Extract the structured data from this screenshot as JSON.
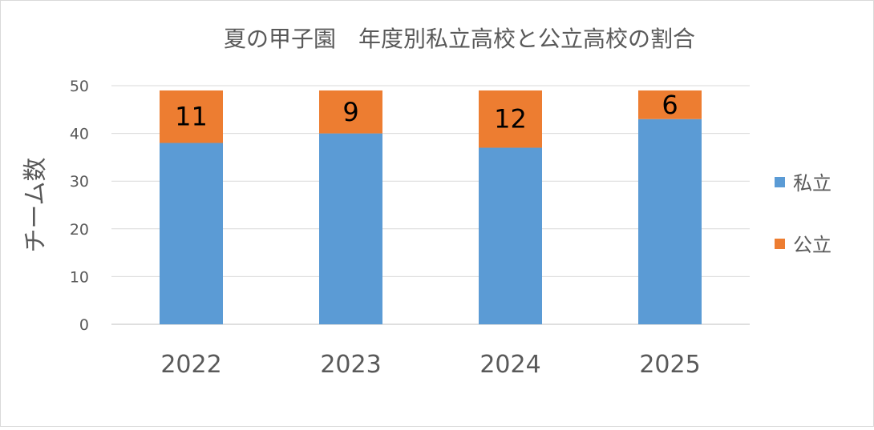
{
  "chart_data": {
    "type": "bar",
    "stacked": true,
    "title": "夏の甲子園　年度別私立高校と公立高校の割合",
    "xlabel": "",
    "ylabel": "チーム数",
    "categories": [
      "2022",
      "2023",
      "2024",
      "2025"
    ],
    "series": [
      {
        "name": "私立",
        "values": [
          38,
          40,
          37,
          43
        ],
        "color": "#5b9bd5"
      },
      {
        "name": "公立",
        "values": [
          11,
          9,
          12,
          6
        ],
        "color": "#ed7d31",
        "show_labels": true
      }
    ],
    "ylim": [
      0,
      50
    ],
    "yticks": [
      0,
      10,
      20,
      30,
      40,
      50
    ],
    "grid": true,
    "legend_position": "right"
  }
}
